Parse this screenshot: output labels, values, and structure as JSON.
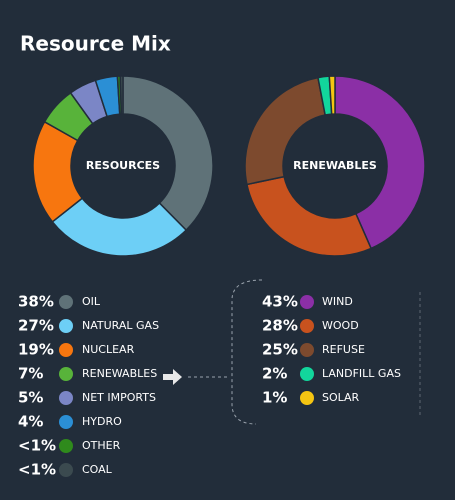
{
  "title": "Resource Mix",
  "chart_data": [
    {
      "type": "donut",
      "title": "RESOURCES",
      "categories": [
        "OIL",
        "NATURAL GAS",
        "NUCLEAR",
        "RENEWABLES",
        "NET IMPORTS",
        "HYDRO",
        "OTHER",
        "COAL"
      ],
      "values": [
        38,
        27,
        19,
        7,
        5,
        4,
        0.5,
        0.5
      ],
      "value_labels": [
        "38%",
        "27%",
        "19%",
        "7%",
        "5%",
        "4%",
        "<1%",
        "<1%"
      ],
      "colors": [
        "#5f7278",
        "#6dcff6",
        "#f7760f",
        "#58b33a",
        "#7b86c6",
        "#2b8fd5",
        "#2f8a1c",
        "#3b4a4f"
      ]
    },
    {
      "type": "donut",
      "title": "RENEWABLES",
      "categories": [
        "WIND",
        "WOOD",
        "REFUSE",
        "LANDFILL GAS",
        "SOLAR"
      ],
      "values": [
        43,
        28,
        25,
        2,
        1
      ],
      "value_labels": [
        "43%",
        "28%",
        "25%",
        "2%",
        "1%"
      ],
      "colors": [
        "#8b2fa6",
        "#c8521e",
        "#7d4a2e",
        "#12d69c",
        "#f5c512"
      ]
    }
  ]
}
